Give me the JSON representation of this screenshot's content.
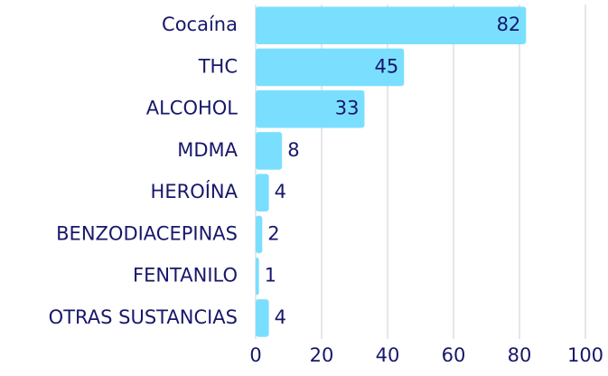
{
  "chart_data": {
    "type": "barh",
    "categories": [
      "Cocaína",
      "THC",
      "ALCOHOL",
      "MDMA",
      "HEROÍNA",
      "BENZODIACEPINAS",
      "FENTANILO",
      "OTRAS SUSTANCIAS"
    ],
    "values": [
      82,
      45,
      33,
      8,
      4,
      2,
      1,
      4
    ],
    "color": "#7adfff",
    "xlim": [
      0,
      100
    ],
    "xticks": [
      0,
      20,
      40,
      60,
      80,
      100
    ],
    "grid": true
  }
}
